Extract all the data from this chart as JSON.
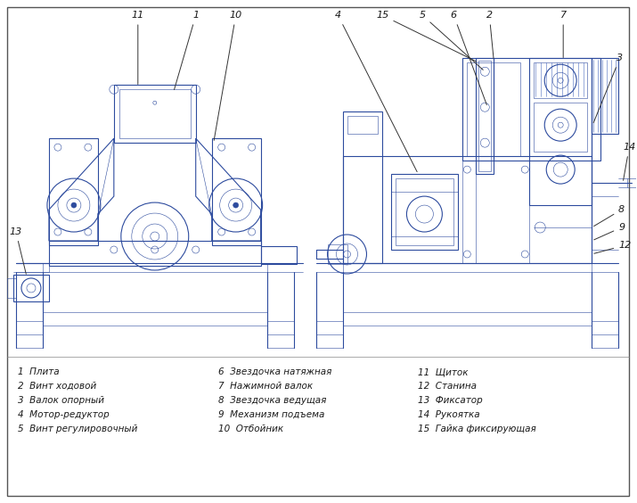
{
  "bg_color": "#ffffff",
  "draw_color": "#2d4b9e",
  "draw_color2": "#3a5aaa",
  "line_color": "#2d4b9e",
  "border_color": "#2d4b9e",
  "legend_col1": [
    "1  Плита",
    "2  Винт ходовой",
    "3  Валок опорный",
    "4  Мотор-редуктор",
    "5  Винт регулировочный"
  ],
  "legend_col2": [
    "6  Звездочка натяжная",
    "7  Нажимной валок",
    "8  Звездочка ведущая",
    "9  Механизм подъема",
    "10  Отбойник"
  ],
  "legend_col3": [
    "11  Щиток",
    "12  Станина",
    "13  Фиксатор",
    "14  Рукоятка",
    "15  Гайка фиксирующая"
  ]
}
